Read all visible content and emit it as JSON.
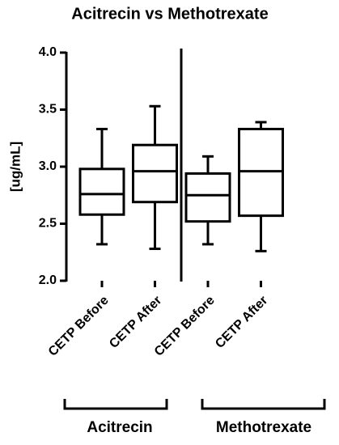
{
  "chart_data": {
    "type": "box",
    "title": "Acitrecin vs Methotrexate",
    "y_label": "[ug/mL]",
    "categories": [
      "CETP Before",
      "CETP After",
      "CETP Before",
      "CETP After"
    ],
    "groups": [
      "Acitrecin",
      "Methotrexate"
    ],
    "boxes": [
      {
        "min": 2.32,
        "q1": 2.58,
        "median": 2.76,
        "q3": 2.98,
        "max": 3.33
      },
      {
        "min": 2.28,
        "q1": 2.69,
        "median": 2.96,
        "q3": 3.19,
        "max": 3.53
      },
      {
        "min": 2.32,
        "q1": 2.52,
        "median": 2.75,
        "q3": 2.94,
        "max": 3.09
      },
      {
        "min": 2.26,
        "q1": 2.57,
        "median": 2.96,
        "q3": 3.33,
        "max": 3.39
      }
    ],
    "color": "#000000",
    "ylim": [
      2,
      4
    ],
    "yticks": [
      {
        "value": 2,
        "label": "2.0"
      },
      {
        "value": 2.5,
        "label": "2.5"
      },
      {
        "value": 3,
        "label": "3.0"
      },
      {
        "value": 3.5,
        "label": "3.5"
      },
      {
        "value": 4,
        "label": "4.0"
      }
    ]
  }
}
